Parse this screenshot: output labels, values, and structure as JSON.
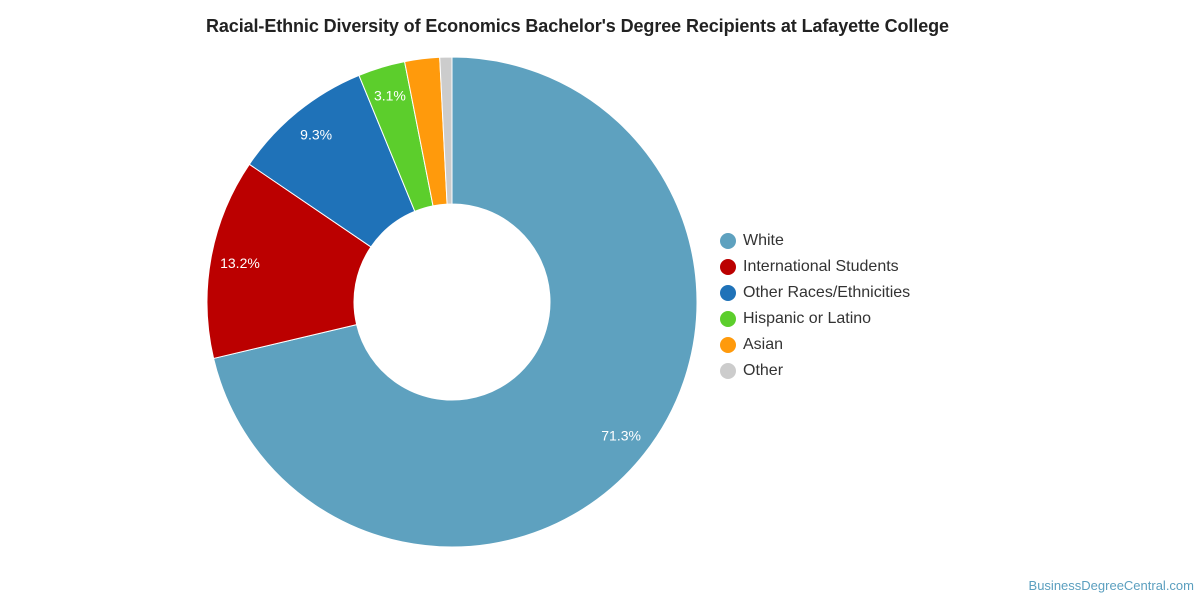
{
  "chart_data": {
    "type": "pie",
    "donut": true,
    "title": "Racial-Ethnic Diversity of Economics Bachelor's Degree Recipients at Lafayette College",
    "legend_position": "right",
    "slices": [
      {
        "name": "White",
        "value": 71.3,
        "label": "71.3%",
        "color": "#5ea1bf"
      },
      {
        "name": "International Students",
        "value": 13.2,
        "label": "13.2%",
        "color": "#bb0000"
      },
      {
        "name": "Other Races/Ethnicities",
        "value": 9.3,
        "label": "9.3%",
        "color": "#1f72b8"
      },
      {
        "name": "Hispanic or Latino",
        "value": 3.1,
        "label": "3.1%",
        "color": "#5cce2c"
      },
      {
        "name": "Asian",
        "value": 2.3,
        "label": "",
        "color": "#ff9a0c"
      },
      {
        "name": "Other",
        "value": 0.8,
        "label": "",
        "color": "#cccccc"
      }
    ]
  },
  "credit": "BusinessDegreeCentral.com"
}
